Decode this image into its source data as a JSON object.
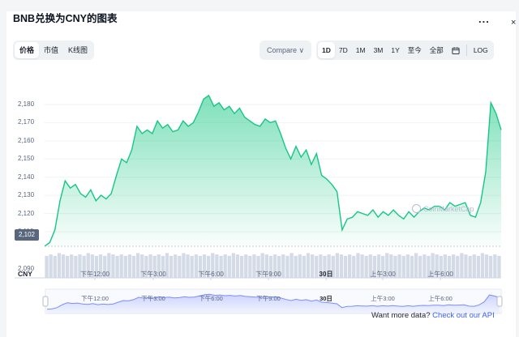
{
  "header": {
    "title": "BNB兑换为CNY的图表",
    "more_label": "...",
    "corner_label": "×"
  },
  "view_tabs": [
    {
      "label": "价格",
      "active": true
    },
    {
      "label": "市值",
      "active": false
    },
    {
      "label": "K线图",
      "active": false
    }
  ],
  "compare": {
    "label": "Compare ∨"
  },
  "range_tabs": [
    {
      "label": "1D",
      "active": true
    },
    {
      "label": "7D",
      "active": false
    },
    {
      "label": "1M",
      "active": false
    },
    {
      "label": "3M",
      "active": false
    },
    {
      "label": "1Y",
      "active": false
    },
    {
      "label": "至今",
      "active": false
    },
    {
      "label": "全部",
      "active": false
    }
  ],
  "calendar_icon": "calendar-icon",
  "log_label": "LOG",
  "watermark": "CoinMarketCap",
  "footer": {
    "text": "Want more data?",
    "link": "Check out our API"
  },
  "chart_data": {
    "type": "area",
    "currency": "CNY",
    "current_price_label": "2,102",
    "y_ticks": [
      "2,180",
      "2,170",
      "2,160",
      "2,150",
      "2,140",
      "2,130",
      "2,120",
      "2,110",
      "2,090"
    ],
    "ylim": [
      2088,
      2186
    ],
    "x_ticks": [
      "下午12:00",
      "下午3:00",
      "下午6:00",
      "下午9:00",
      "30日",
      "上午3:00",
      "上午6:00"
    ],
    "x_ticks_bold": [
      false,
      false,
      false,
      false,
      true,
      false,
      false
    ],
    "navigator_ticks": [
      "下午12:00",
      "下午3:00",
      "下午6:00",
      "下午9:00",
      "30日",
      "上午3:00",
      "上午6:00"
    ],
    "grid": true,
    "line_color": "#16c784",
    "values": [
      2102,
      2104,
      2111,
      2127,
      2138,
      2134,
      2136,
      2131,
      2129,
      2133,
      2127,
      2130,
      2128,
      2131,
      2141,
      2150,
      2148,
      2155,
      2168,
      2164,
      2166,
      2164,
      2171,
      2167,
      2169,
      2165,
      2166,
      2171,
      2168,
      2170,
      2176,
      2183,
      2185,
      2179,
      2181,
      2177,
      2179,
      2175,
      2178,
      2173,
      2171,
      2169,
      2168,
      2172,
      2170,
      2171,
      2164,
      2156,
      2150,
      2157,
      2151,
      2155,
      2147,
      2153,
      2141,
      2139,
      2136,
      2132,
      2111,
      2117,
      2118,
      2121,
      2120,
      2119,
      2122,
      2118,
      2121,
      2119,
      2122,
      2119,
      2117,
      2121,
      2118,
      2121,
      2123,
      2122,
      2124,
      2124,
      2122,
      2126,
      2124,
      2125,
      2126,
      2119,
      2118,
      2126,
      2143,
      2181,
      2175,
      2166
    ],
    "volume_levels": [
      0.8,
      0.85,
      0.8,
      0.9,
      0.85,
      0.8,
      0.85,
      0.8,
      0.85,
      0.8,
      0.9,
      0.85,
      0.8,
      0.85,
      0.8,
      0.9,
      0.85,
      0.8,
      0.85,
      0.8,
      0.85,
      0.8,
      0.9,
      0.85,
      0.8,
      0.85,
      0.8,
      0.85,
      0.8,
      0.9
    ]
  }
}
